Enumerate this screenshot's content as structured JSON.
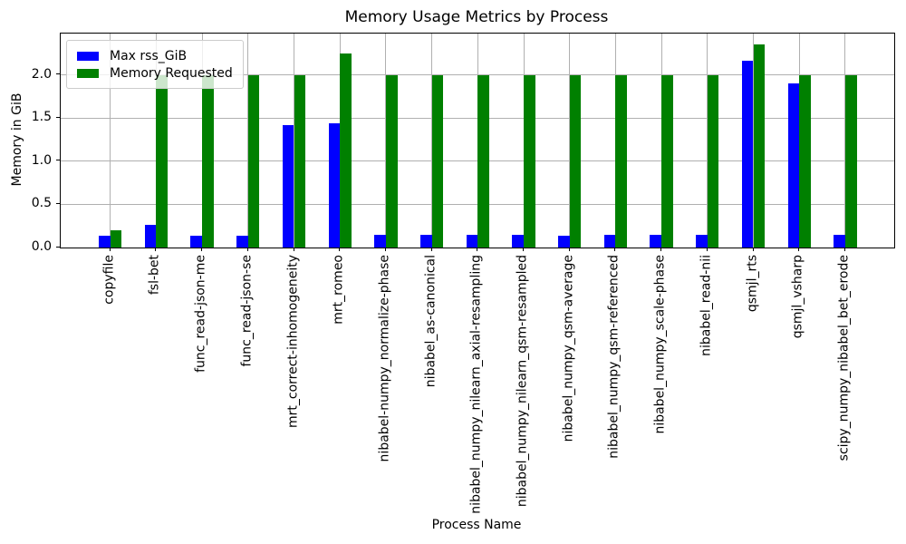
{
  "chart_data": {
    "type": "bar",
    "title": "Memory Usage Metrics by Process",
    "xlabel": "Process Name",
    "ylabel": "Memory in GiB",
    "categories": [
      "copyfile",
      "fsl-bet",
      "func_read-json-me",
      "func_read-json-se",
      "mrt_correct-inhomogeneity",
      "mrt_romeo",
      "nibabel-numpy_normalize-phase",
      "nibabel_as-canonical",
      "nibabel_numpy_nilearn_axial-resampling",
      "nibabel_numpy_nilearn_qsm-resampled",
      "nibabel_numpy_qsm-average",
      "nibabel_numpy_qsm-referenced",
      "nibabel_numpy_scale-phase",
      "nibabel_read-nii",
      "qsmjl_rts",
      "qsmjl_vsharp",
      "scipy_numpy_nibabel_bet_erode"
    ],
    "series": [
      {
        "name": "Max rss_GiB",
        "color": "#0000ff",
        "values": [
          0.14,
          0.26,
          0.14,
          0.14,
          1.42,
          1.44,
          0.15,
          0.15,
          0.15,
          0.15,
          0.14,
          0.15,
          0.15,
          0.15,
          2.16,
          1.9,
          0.15
        ]
      },
      {
        "name": "Memory Requested",
        "color": "#008000",
        "values": [
          0.2,
          2.0,
          2.0,
          2.0,
          2.0,
          2.25,
          2.0,
          2.0,
          2.0,
          2.0,
          2.0,
          2.0,
          2.0,
          2.0,
          2.35,
          2.0,
          2.0
        ]
      }
    ],
    "ylim": [
      0,
      2.48
    ],
    "yticks": [
      0.0,
      0.5,
      1.0,
      1.5,
      2.0
    ],
    "ytick_labels": [
      "0.0",
      "0.5",
      "1.0",
      "1.5",
      "2.0"
    ],
    "grid": true,
    "legend_position": "upper left",
    "grid_color": "#b0b0b0",
    "spine_color": "#000000"
  }
}
